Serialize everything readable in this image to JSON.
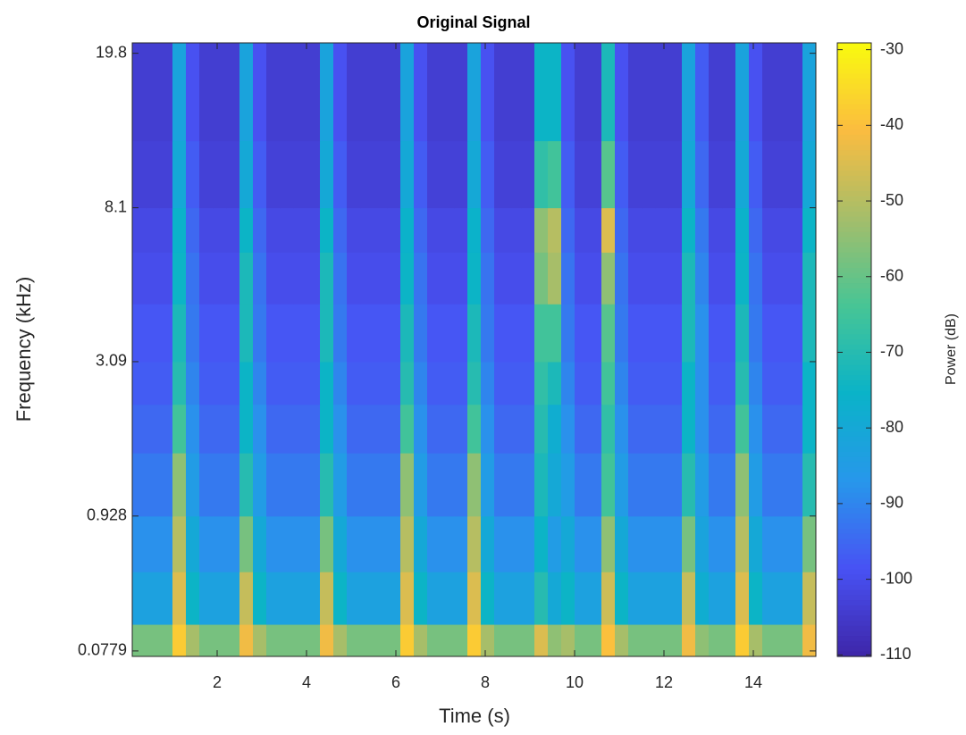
{
  "chart_data": {
    "type": "spectrogram",
    "title": "Original Signal",
    "xlabel": "Time (s)",
    "ylabel": "Frequency (kHz)",
    "colorbar_label": "Power (dB)",
    "yscale": "mel",
    "x": [
      0.1,
      0.4,
      0.7,
      1,
      1.3,
      1.6,
      1.9,
      2.2,
      2.5,
      2.8,
      3.1,
      3.4,
      3.7,
      4,
      4.3,
      4.6,
      4.9,
      5.2,
      5.5,
      5.8,
      6.1,
      6.4,
      6.7,
      7,
      7.3,
      7.6,
      7.9,
      8.2,
      8.5,
      8.8,
      9.1,
      9.4,
      9.7,
      10,
      10.3,
      10.6,
      10.9,
      11.2,
      11.5,
      11.8,
      12.1,
      12.4,
      12.7,
      13,
      13.3,
      13.6,
      13.9,
      14.2,
      14.5,
      14.8,
      15.1,
      15.4
    ],
    "y": [
      0.055,
      0.2,
      0.5,
      0.928,
      1.6,
      2.3,
      3.09,
      4.5,
      6.2,
      8.1,
      12,
      21
    ],
    "values": [
      [
        -58,
        -58,
        -58,
        -38,
        -52,
        -58,
        -58,
        -58,
        -42,
        -52,
        -58,
        -58,
        -58,
        -58,
        -42,
        -52,
        -58,
        -58,
        -58,
        -58,
        -38,
        -52,
        -58,
        -58,
        -58,
        -38,
        -52,
        -58,
        -58,
        -58,
        -45,
        -55,
        -52,
        -58,
        -58,
        -40,
        -52,
        -58,
        -58,
        -58,
        -58,
        -42,
        -55,
        -58,
        -58,
        -38,
        -52,
        -58,
        -58,
        -58,
        -42
      ],
      [
        -83,
        -83,
        -83,
        -45,
        -75,
        -83,
        -83,
        -83,
        -48,
        -75,
        -83,
        -83,
        -83,
        -83,
        -48,
        -75,
        -83,
        -83,
        -83,
        -83,
        -45,
        -75,
        -83,
        -83,
        -83,
        -45,
        -75,
        -83,
        -83,
        -83,
        -70,
        -80,
        -75,
        -83,
        -83,
        -47,
        -75,
        -83,
        -83,
        -83,
        -83,
        -48,
        -78,
        -83,
        -83,
        -45,
        -75,
        -83,
        -83,
        -83,
        -48
      ],
      [
        -88,
        -88,
        -88,
        -50,
        -80,
        -88,
        -88,
        -88,
        -58,
        -80,
        -88,
        -88,
        -88,
        -88,
        -58,
        -80,
        -88,
        -88,
        -88,
        -88,
        -50,
        -80,
        -88,
        -88,
        -88,
        -50,
        -80,
        -88,
        -88,
        -88,
        -75,
        -85,
        -80,
        -88,
        -88,
        -55,
        -80,
        -88,
        -88,
        -88,
        -88,
        -58,
        -82,
        -88,
        -88,
        -50,
        -80,
        -88,
        -88,
        -88,
        -58
      ],
      [
        -92,
        -92,
        -92,
        -55,
        -85,
        -92,
        -92,
        -92,
        -70,
        -85,
        -92,
        -92,
        -92,
        -92,
        -70,
        -85,
        -92,
        -92,
        -92,
        -92,
        -55,
        -85,
        -92,
        -92,
        -92,
        -55,
        -85,
        -92,
        -92,
        -92,
        -72,
        -80,
        -85,
        -92,
        -92,
        -65,
        -85,
        -92,
        -92,
        -92,
        -92,
        -70,
        -85,
        -92,
        -92,
        -55,
        -85,
        -92,
        -92,
        -92,
        -70
      ],
      [
        -95,
        -95,
        -95,
        -65,
        -88,
        -95,
        -95,
        -95,
        -75,
        -88,
        -95,
        -95,
        -95,
        -95,
        -75,
        -88,
        -95,
        -95,
        -95,
        -95,
        -65,
        -88,
        -95,
        -95,
        -95,
        -65,
        -88,
        -95,
        -95,
        -95,
        -70,
        -78,
        -88,
        -95,
        -95,
        -68,
        -88,
        -95,
        -95,
        -95,
        -95,
        -75,
        -88,
        -95,
        -95,
        -65,
        -88,
        -95,
        -95,
        -95,
        -75
      ],
      [
        -97,
        -97,
        -97,
        -70,
        -90,
        -97,
        -97,
        -97,
        -75,
        -90,
        -97,
        -97,
        -97,
        -97,
        -75,
        -90,
        -97,
        -97,
        -97,
        -97,
        -70,
        -90,
        -97,
        -97,
        -97,
        -70,
        -90,
        -97,
        -97,
        -97,
        -68,
        -72,
        -90,
        -97,
        -97,
        -65,
        -90,
        -97,
        -97,
        -97,
        -97,
        -75,
        -88,
        -97,
        -97,
        -70,
        -90,
        -97,
        -97,
        -97,
        -75
      ],
      [
        -98,
        -98,
        -98,
        -72,
        -92,
        -98,
        -98,
        -98,
        -72,
        -92,
        -98,
        -98,
        -98,
        -98,
        -72,
        -92,
        -98,
        -98,
        -98,
        -98,
        -72,
        -92,
        -98,
        -98,
        -98,
        -72,
        -92,
        -98,
        -98,
        -98,
        -65,
        -65,
        -92,
        -98,
        -98,
        -62,
        -92,
        -98,
        -98,
        -98,
        -98,
        -72,
        -88,
        -98,
        -98,
        -72,
        -92,
        -98,
        -98,
        -98,
        -72
      ],
      [
        -100,
        -100,
        -100,
        -75,
        -93,
        -100,
        -100,
        -100,
        -72,
        -93,
        -100,
        -100,
        -100,
        -100,
        -72,
        -93,
        -100,
        -100,
        -100,
        -100,
        -75,
        -93,
        -100,
        -100,
        -100,
        -75,
        -93,
        -100,
        -100,
        -100,
        -58,
        -52,
        -93,
        -100,
        -100,
        -55,
        -93,
        -100,
        -100,
        -100,
        -100,
        -72,
        -90,
        -100,
        -100,
        -75,
        -93,
        -100,
        -100,
        -100,
        -72
      ],
      [
        -101,
        -101,
        -101,
        -76,
        -95,
        -101,
        -101,
        -101,
        -75,
        -95,
        -101,
        -101,
        -101,
        -101,
        -75,
        -95,
        -101,
        -101,
        -101,
        -101,
        -76,
        -95,
        -101,
        -101,
        -101,
        -76,
        -95,
        -101,
        -101,
        -101,
        -55,
        -50,
        -95,
        -101,
        -101,
        -45,
        -95,
        -101,
        -101,
        -101,
        -101,
        -75,
        -92,
        -101,
        -101,
        -76,
        -95,
        -101,
        -101,
        -101,
        -75
      ],
      [
        -103,
        -103,
        -103,
        -80,
        -97,
        -103,
        -103,
        -103,
        -80,
        -97,
        -103,
        -103,
        -103,
        -103,
        -80,
        -97,
        -103,
        -103,
        -103,
        -103,
        -80,
        -97,
        -103,
        -103,
        -103,
        -80,
        -97,
        -103,
        -103,
        -103,
        -68,
        -65,
        -97,
        -103,
        -103,
        -62,
        -97,
        -103,
        -103,
        -103,
        -103,
        -80,
        -95,
        -103,
        -103,
        -80,
        -97,
        -103,
        -103,
        -103,
        -80
      ],
      [
        -104,
        -104,
        -104,
        -82,
        -99,
        -104,
        -104,
        -104,
        -82,
        -99,
        -104,
        -104,
        -104,
        -104,
        -82,
        -99,
        -104,
        -104,
        -104,
        -104,
        -82,
        -99,
        -104,
        -104,
        -104,
        -82,
        -99,
        -104,
        -104,
        -104,
        -75,
        -75,
        -99,
        -104,
        -104,
        -72,
        -99,
        -104,
        -104,
        -104,
        -104,
        -82,
        -97,
        -104,
        -104,
        -82,
        -99,
        -104,
        -104,
        -104,
        -82
      ]
    ],
    "xlim": [
      0.1,
      15.4
    ],
    "ylim": [
      0.055,
      21
    ],
    "xticks": [
      2,
      4,
      6,
      8,
      10,
      12,
      14
    ],
    "yticks": [
      0.0779,
      0.928,
      3.09,
      8.1,
      19.8
    ],
    "clim": [
      -110.2,
      -29.1
    ],
    "cticks": [
      -110,
      -100,
      -90,
      -80,
      -70,
      -60,
      -50,
      -40,
      -30
    ],
    "colormap": [
      "#3e26a8",
      "#4852f4",
      "#2797eb",
      "#0ab3c8",
      "#47c595",
      "#a5be6a",
      "#fbbc40",
      "#f9fb0e"
    ]
  }
}
